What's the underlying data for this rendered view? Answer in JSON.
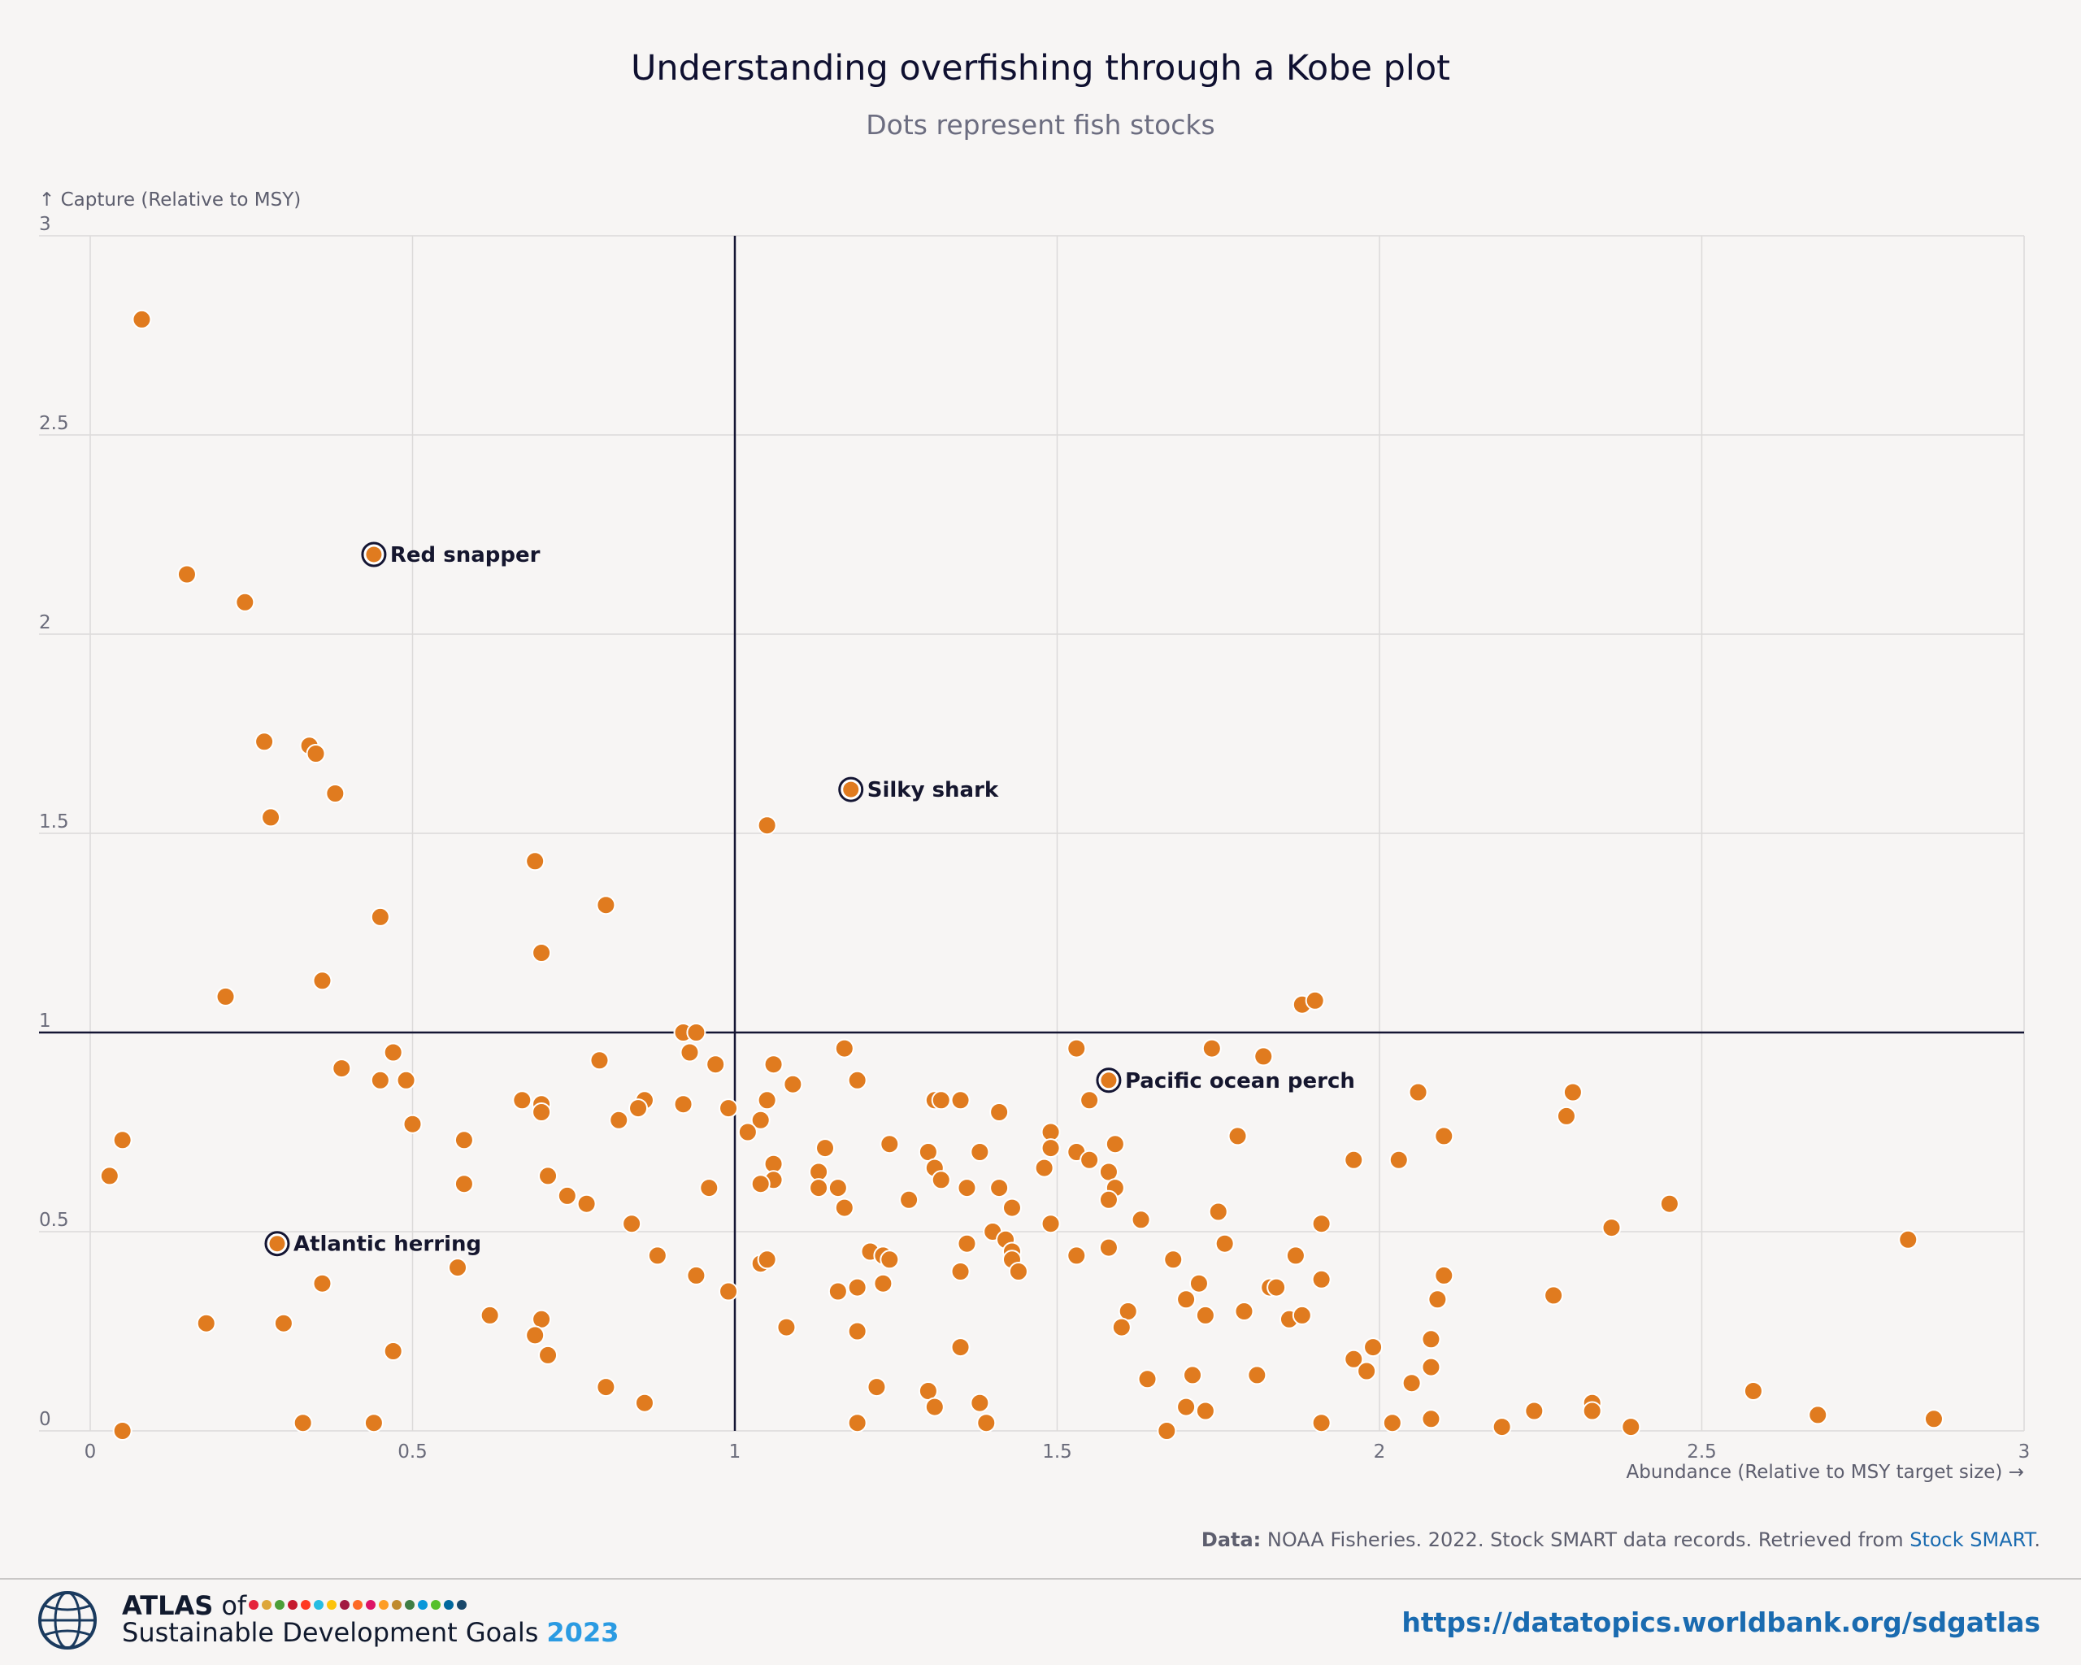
{
  "chart_data": {
    "type": "scatter",
    "title": "Understanding overfishing through a Kobe plot",
    "subtitle": "Dots represent fish stocks",
    "xlabel": "Abundance (Relative to MSY target size) →",
    "ylabel": "↑ Capture (Relative to MSY)",
    "xlim": [
      0,
      3
    ],
    "ylim": [
      0,
      3
    ],
    "x_ticks": [
      0,
      0.5,
      1,
      1.5,
      2,
      2.5,
      3
    ],
    "x_tick_labels": [
      "0",
      "0.5",
      "1",
      "1.5",
      "2",
      "2.5",
      "3"
    ],
    "y_ticks": [
      0,
      0.5,
      1,
      1.5,
      2,
      2.5,
      3
    ],
    "y_tick_labels": [
      "0",
      "0.5",
      "1",
      "1.5",
      "2",
      "2.5",
      "3"
    ],
    "grid": true,
    "reference_lines": {
      "x": 1,
      "y": 1
    },
    "point_color": "#e07b1f",
    "highlighted_points": [
      {
        "label": "Red snapper",
        "x": 0.44,
        "y": 2.2
      },
      {
        "label": "Silky shark",
        "x": 1.18,
        "y": 1.61
      },
      {
        "label": "Pacific ocean perch",
        "x": 1.58,
        "y": 0.88
      },
      {
        "label": "Atlantic herring",
        "x": 0.29,
        "y": 0.47
      }
    ],
    "points": [
      [
        0.08,
        2.79
      ],
      [
        0.15,
        2.15
      ],
      [
        0.24,
        2.08
      ],
      [
        0.27,
        1.73
      ],
      [
        0.34,
        1.72
      ],
      [
        0.35,
        1.7
      ],
      [
        0.38,
        1.6
      ],
      [
        0.28,
        1.54
      ],
      [
        1.05,
        1.52
      ],
      [
        0.69,
        1.43
      ],
      [
        0.8,
        1.32
      ],
      [
        0.45,
        1.29
      ],
      [
        0.7,
        1.2
      ],
      [
        0.36,
        1.13
      ],
      [
        0.21,
        1.09
      ],
      [
        1.88,
        1.07
      ],
      [
        1.9,
        1.08
      ],
      [
        0.92,
        1.0
      ],
      [
        0.94,
        1.0
      ],
      [
        1.17,
        0.96
      ],
      [
        1.53,
        0.96
      ],
      [
        1.74,
        0.96
      ],
      [
        1.82,
        0.94
      ],
      [
        0.47,
        0.95
      ],
      [
        0.79,
        0.93
      ],
      [
        0.93,
        0.95
      ],
      [
        0.97,
        0.92
      ],
      [
        1.06,
        0.92
      ],
      [
        0.39,
        0.91
      ],
      [
        0.45,
        0.88
      ],
      [
        0.49,
        0.88
      ],
      [
        1.09,
        0.87
      ],
      [
        1.19,
        0.88
      ],
      [
        2.06,
        0.85
      ],
      [
        2.3,
        0.85
      ],
      [
        0.67,
        0.83
      ],
      [
        0.7,
        0.82
      ],
      [
        0.7,
        0.8
      ],
      [
        0.86,
        0.83
      ],
      [
        0.85,
        0.81
      ],
      [
        0.92,
        0.82
      ],
      [
        0.99,
        0.81
      ],
      [
        1.05,
        0.83
      ],
      [
        1.31,
        0.83
      ],
      [
        1.32,
        0.83
      ],
      [
        1.35,
        0.83
      ],
      [
        1.55,
        0.83
      ],
      [
        1.41,
        0.8
      ],
      [
        1.04,
        0.78
      ],
      [
        0.82,
        0.78
      ],
      [
        2.29,
        0.79
      ],
      [
        0.5,
        0.77
      ],
      [
        1.02,
        0.75
      ],
      [
        1.49,
        0.75
      ],
      [
        2.1,
        0.74
      ],
      [
        1.78,
        0.74
      ],
      [
        0.58,
        0.73
      ],
      [
        0.05,
        0.73
      ],
      [
        1.14,
        0.71
      ],
      [
        1.24,
        0.72
      ],
      [
        1.3,
        0.7
      ],
      [
        1.38,
        0.7
      ],
      [
        1.49,
        0.71
      ],
      [
        1.53,
        0.7
      ],
      [
        1.55,
        0.68
      ],
      [
        1.59,
        0.72
      ],
      [
        1.96,
        0.68
      ],
      [
        2.03,
        0.68
      ],
      [
        1.06,
        0.67
      ],
      [
        1.31,
        0.66
      ],
      [
        1.48,
        0.66
      ],
      [
        1.13,
        0.65
      ],
      [
        1.58,
        0.65
      ],
      [
        0.71,
        0.64
      ],
      [
        0.03,
        0.64
      ],
      [
        1.06,
        0.63
      ],
      [
        1.32,
        0.63
      ],
      [
        0.58,
        0.62
      ],
      [
        1.04,
        0.62
      ],
      [
        1.13,
        0.61
      ],
      [
        1.16,
        0.61
      ],
      [
        1.36,
        0.61
      ],
      [
        1.41,
        0.61
      ],
      [
        1.59,
        0.61
      ],
      [
        0.96,
        0.61
      ],
      [
        0.74,
        0.59
      ],
      [
        1.27,
        0.58
      ],
      [
        0.77,
        0.57
      ],
      [
        1.17,
        0.56
      ],
      [
        1.43,
        0.56
      ],
      [
        1.58,
        0.58
      ],
      [
        1.75,
        0.55
      ],
      [
        2.45,
        0.57
      ],
      [
        0.84,
        0.52
      ],
      [
        1.49,
        0.52
      ],
      [
        1.63,
        0.53
      ],
      [
        1.91,
        0.52
      ],
      [
        2.36,
        0.51
      ],
      [
        1.4,
        0.5
      ],
      [
        1.42,
        0.48
      ],
      [
        1.36,
        0.47
      ],
      [
        1.58,
        0.46
      ],
      [
        1.76,
        0.47
      ],
      [
        1.21,
        0.45
      ],
      [
        1.23,
        0.44
      ],
      [
        1.24,
        0.43
      ],
      [
        1.43,
        0.45
      ],
      [
        1.43,
        0.43
      ],
      [
        1.53,
        0.44
      ],
      [
        1.68,
        0.43
      ],
      [
        1.87,
        0.44
      ],
      [
        2.82,
        0.48
      ],
      [
        0.88,
        0.44
      ],
      [
        1.04,
        0.42
      ],
      [
        1.05,
        0.43
      ],
      [
        0.57,
        0.41
      ],
      [
        1.35,
        0.4
      ],
      [
        1.44,
        0.4
      ],
      [
        0.94,
        0.39
      ],
      [
        2.1,
        0.39
      ],
      [
        1.91,
        0.38
      ],
      [
        0.36,
        0.37
      ],
      [
        1.23,
        0.37
      ],
      [
        1.72,
        0.37
      ],
      [
        0.99,
        0.35
      ],
      [
        1.16,
        0.35
      ],
      [
        1.19,
        0.36
      ],
      [
        1.83,
        0.36
      ],
      [
        1.84,
        0.36
      ],
      [
        1.7,
        0.33
      ],
      [
        2.09,
        0.33
      ],
      [
        2.27,
        0.34
      ],
      [
        1.73,
        0.29
      ],
      [
        1.79,
        0.3
      ],
      [
        1.86,
        0.28
      ],
      [
        1.88,
        0.29
      ],
      [
        1.61,
        0.3
      ],
      [
        1.6,
        0.26
      ],
      [
        0.62,
        0.29
      ],
      [
        0.7,
        0.28
      ],
      [
        0.18,
        0.27
      ],
      [
        0.3,
        0.27
      ],
      [
        1.08,
        0.26
      ],
      [
        1.19,
        0.25
      ],
      [
        0.69,
        0.24
      ],
      [
        2.08,
        0.23
      ],
      [
        1.35,
        0.21
      ],
      [
        1.99,
        0.21
      ],
      [
        0.47,
        0.2
      ],
      [
        0.71,
        0.19
      ],
      [
        1.96,
        0.18
      ],
      [
        2.08,
        0.16
      ],
      [
        1.98,
        0.15
      ],
      [
        1.71,
        0.14
      ],
      [
        1.81,
        0.14
      ],
      [
        1.64,
        0.13
      ],
      [
        2.05,
        0.12
      ],
      [
        0.8,
        0.11
      ],
      [
        1.22,
        0.11
      ],
      [
        1.3,
        0.1
      ],
      [
        2.58,
        0.1
      ],
      [
        0.86,
        0.07
      ],
      [
        1.38,
        0.07
      ],
      [
        2.33,
        0.07
      ],
      [
        1.31,
        0.06
      ],
      [
        1.7,
        0.06
      ],
      [
        1.73,
        0.05
      ],
      [
        2.24,
        0.05
      ],
      [
        2.33,
        0.05
      ],
      [
        2.68,
        0.04
      ],
      [
        2.08,
        0.03
      ],
      [
        1.91,
        0.02
      ],
      [
        2.86,
        0.03
      ],
      [
        0.33,
        0.02
      ],
      [
        0.44,
        0.02
      ],
      [
        1.19,
        0.02
      ],
      [
        1.39,
        0.02
      ],
      [
        2.02,
        0.02
      ],
      [
        2.19,
        0.01
      ],
      [
        2.39,
        0.01
      ],
      [
        1.67,
        0.0
      ],
      [
        0.05,
        0.0
      ]
    ]
  },
  "source": {
    "prefix": "Data:",
    "text": " NOAA Fisheries. 2022. Stock SMART data records. Retrieved from ",
    "link": "Stock SMART",
    "suffix": "."
  },
  "footer": {
    "atlas": "ATLAS",
    "of": "of",
    "subtitle": "Sustainable Development Goals",
    "year": "2023",
    "url": "https://datatopics.worldbank.org/sdgatlas",
    "sdg_colors": [
      "#e5243b",
      "#dda63a",
      "#4c9f38",
      "#c5192d",
      "#ff3a21",
      "#26bde2",
      "#fcc30b",
      "#a21942",
      "#fd6925",
      "#dd1367",
      "#fd9d24",
      "#bf8b2e",
      "#3f7e44",
      "#0a97d9",
      "#56c02b",
      "#00689d",
      "#19486a"
    ]
  }
}
